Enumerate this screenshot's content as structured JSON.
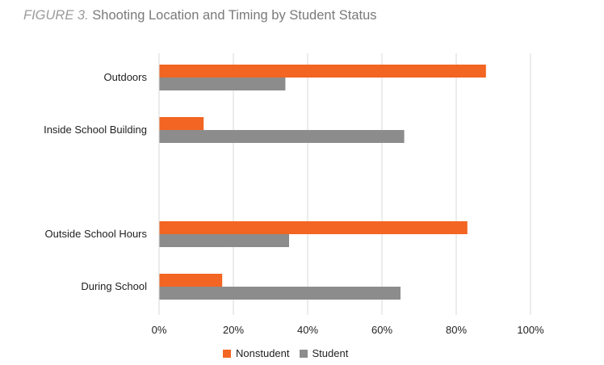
{
  "figure": {
    "number": "FIGURE 3.",
    "title": "Shooting Location and Timing by Student Status"
  },
  "chart_data": {
    "type": "bar",
    "orientation": "horizontal",
    "categories": [
      "Outdoors",
      "Inside School Building",
      "Outside School Hours",
      "During School"
    ],
    "series": [
      {
        "name": "Nonstudent",
        "color": "#f26522",
        "values": [
          88,
          12,
          83,
          17
        ]
      },
      {
        "name": "Student",
        "color": "#8c8c8c",
        "values": [
          34,
          66,
          35,
          65
        ]
      }
    ],
    "xlim": [
      0,
      100
    ],
    "x_ticks": [
      "0%",
      "20%",
      "40%",
      "60%",
      "80%",
      "100%"
    ],
    "unit": "%",
    "grid": true,
    "legend_position": "bottom"
  }
}
